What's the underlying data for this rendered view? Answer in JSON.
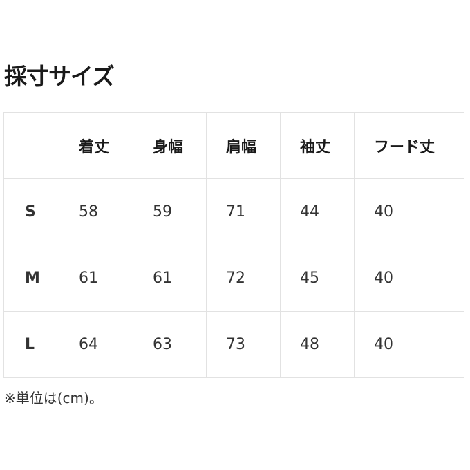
{
  "title": "採寸サイズ",
  "table": {
    "headers": [
      "",
      "着丈",
      "身幅",
      "肩幅",
      "袖丈",
      "フード丈"
    ],
    "rows": [
      {
        "size": "S",
        "values": [
          "58",
          "59",
          "71",
          "44",
          "40"
        ]
      },
      {
        "size": "M",
        "values": [
          "61",
          "61",
          "72",
          "45",
          "40"
        ]
      },
      {
        "size": "L",
        "values": [
          "64",
          "63",
          "73",
          "48",
          "40"
        ]
      }
    ]
  },
  "note": "※単位は(cm)。"
}
